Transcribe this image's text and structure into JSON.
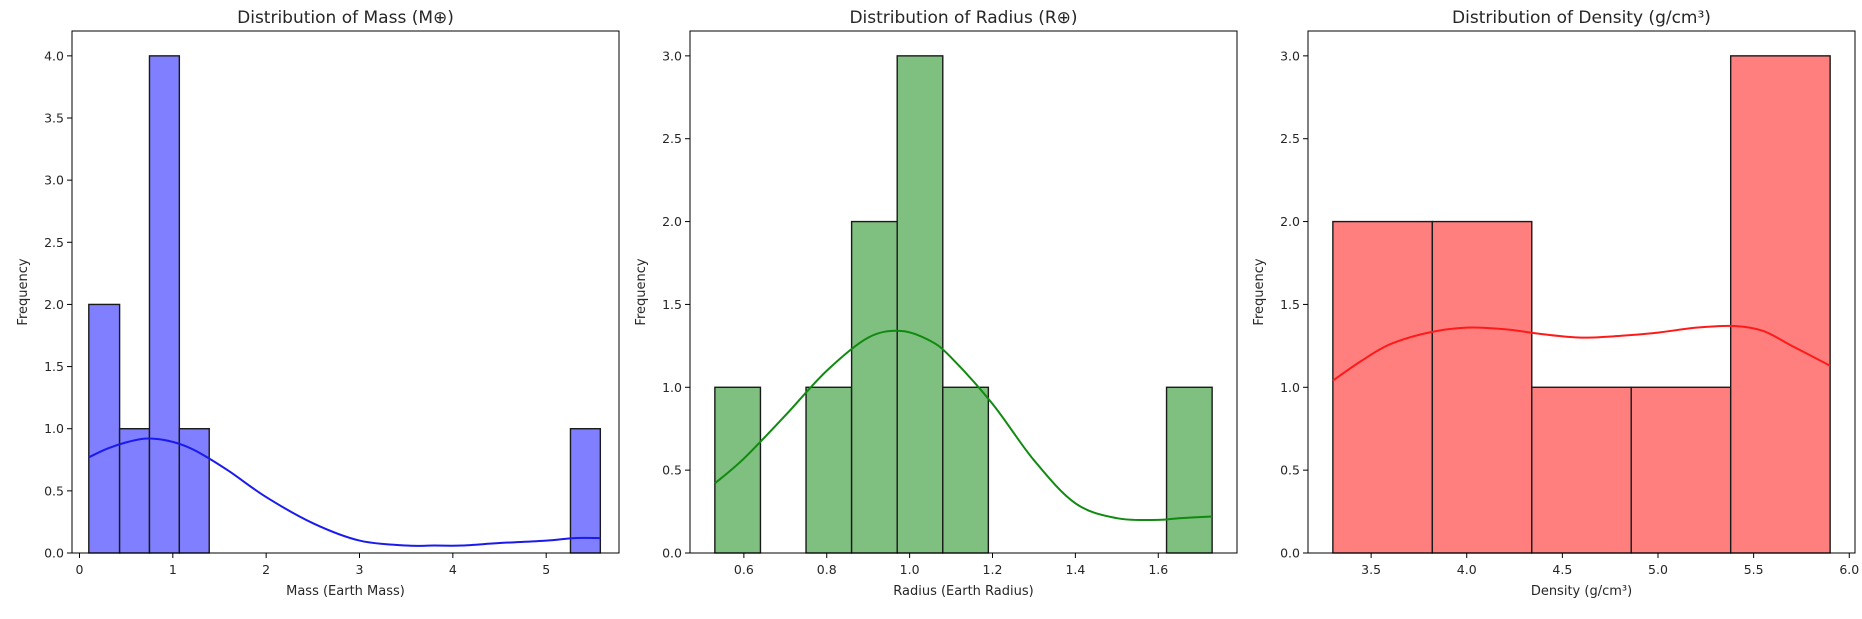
{
  "chart_data": [
    {
      "type": "bar",
      "title": "Distribution of Mass (M⊕)",
      "xlabel": "Mass (Earth Mass)",
      "ylabel": "Frequency",
      "xlim": [
        -0.08,
        5.78
      ],
      "ylim": [
        0,
        4.2
      ],
      "xticks": [
        0,
        1,
        2,
        3,
        4,
        5
      ],
      "xtick_labels": [
        "0",
        "1",
        "2",
        "3",
        "4",
        "5"
      ],
      "yticks": [
        0,
        0.5,
        1,
        1.5,
        2,
        2.5,
        3,
        3.5,
        4
      ],
      "ytick_labels": [
        "0.0",
        "0.5",
        "1.0",
        "1.5",
        "2.0",
        "2.5",
        "3.0",
        "3.5",
        "4.0"
      ],
      "bins": [
        {
          "x0": 0.1,
          "x1": 0.43,
          "count": 2
        },
        {
          "x0": 0.43,
          "x1": 0.75,
          "count": 1
        },
        {
          "x0": 0.75,
          "x1": 1.07,
          "count": 4
        },
        {
          "x0": 1.07,
          "x1": 1.39,
          "count": 1
        },
        {
          "x0": 5.26,
          "x1": 5.58,
          "count": 1
        }
      ],
      "kde": {
        "x": [
          0.1,
          0.3,
          0.5,
          0.7,
          0.9,
          1.1,
          1.3,
          1.6,
          2.0,
          2.5,
          3.0,
          3.5,
          3.8,
          4.1,
          4.5,
          5.0,
          5.3,
          5.58
        ],
        "y": [
          0.77,
          0.84,
          0.89,
          0.92,
          0.91,
          0.87,
          0.8,
          0.66,
          0.45,
          0.24,
          0.1,
          0.06,
          0.06,
          0.06,
          0.08,
          0.1,
          0.12,
          0.12
        ]
      },
      "colors": {
        "bar": "#7f7fff",
        "line": "#1a1aee"
      }
    },
    {
      "type": "bar",
      "title": "Distribution of Radius (R⊕)",
      "xlabel": "Radius (Earth Radius)",
      "ylabel": "Frequency",
      "xlim": [
        0.47,
        1.79
      ],
      "ylim": [
        0,
        3.15
      ],
      "xticks": [
        0.6,
        0.8,
        1.0,
        1.2,
        1.4,
        1.6
      ],
      "xtick_labels": [
        "0.6",
        "0.8",
        "1.0",
        "1.2",
        "1.4",
        "1.6"
      ],
      "yticks": [
        0,
        0.5,
        1,
        1.5,
        2,
        2.5,
        3
      ],
      "ytick_labels": [
        "0.0",
        "0.5",
        "1.0",
        "1.5",
        "2.0",
        "2.5",
        "3.0"
      ],
      "bins": [
        {
          "x0": 0.53,
          "x1": 0.64,
          "count": 1
        },
        {
          "x0": 0.75,
          "x1": 0.86,
          "count": 1
        },
        {
          "x0": 0.86,
          "x1": 0.97,
          "count": 2
        },
        {
          "x0": 0.97,
          "x1": 1.08,
          "count": 3
        },
        {
          "x0": 1.08,
          "x1": 1.19,
          "count": 1
        },
        {
          "x0": 1.62,
          "x1": 1.73,
          "count": 1
        }
      ],
      "kde": {
        "x": [
          0.53,
          0.6,
          0.7,
          0.8,
          0.9,
          0.98,
          1.05,
          1.1,
          1.2,
          1.3,
          1.4,
          1.5,
          1.6,
          1.65,
          1.73
        ],
        "y": [
          0.42,
          0.57,
          0.83,
          1.1,
          1.3,
          1.34,
          1.28,
          1.18,
          0.9,
          0.56,
          0.3,
          0.21,
          0.2,
          0.21,
          0.22
        ]
      },
      "colors": {
        "bar": "#7fbf7f",
        "line": "#108a10"
      }
    },
    {
      "type": "bar",
      "title": "Distribution of Density (g/cm³)",
      "xlabel": "Density (g/cm³)",
      "ylabel": "Frequency",
      "xlim": [
        3.17,
        6.03
      ],
      "ylim": [
        0,
        3.15
      ],
      "xticks": [
        3.5,
        4.0,
        4.5,
        5.0,
        5.5,
        6.0
      ],
      "xtick_labels": [
        "3.5",
        "4.0",
        "4.5",
        "5.0",
        "5.5",
        "6.0"
      ],
      "yticks": [
        0,
        0.5,
        1,
        1.5,
        2,
        2.5,
        3
      ],
      "ytick_labels": [
        "0.0",
        "0.5",
        "1.0",
        "1.5",
        "2.0",
        "2.5",
        "3.0"
      ],
      "bins": [
        {
          "x0": 3.3,
          "x1": 3.82,
          "count": 2
        },
        {
          "x0": 3.82,
          "x1": 4.34,
          "count": 2
        },
        {
          "x0": 4.34,
          "x1": 4.86,
          "count": 1
        },
        {
          "x0": 4.86,
          "x1": 5.38,
          "count": 1
        },
        {
          "x0": 5.38,
          "x1": 5.9,
          "count": 3
        }
      ],
      "kde": {
        "x": [
          3.3,
          3.45,
          3.6,
          3.8,
          4.0,
          4.2,
          4.4,
          4.6,
          4.8,
          5.0,
          5.2,
          5.4,
          5.55,
          5.7,
          5.9
        ],
        "y": [
          1.04,
          1.16,
          1.26,
          1.33,
          1.36,
          1.35,
          1.32,
          1.3,
          1.31,
          1.33,
          1.36,
          1.37,
          1.34,
          1.25,
          1.13
        ]
      },
      "colors": {
        "bar": "#ff7f7f",
        "line": "#ff1a1a"
      }
    }
  ]
}
